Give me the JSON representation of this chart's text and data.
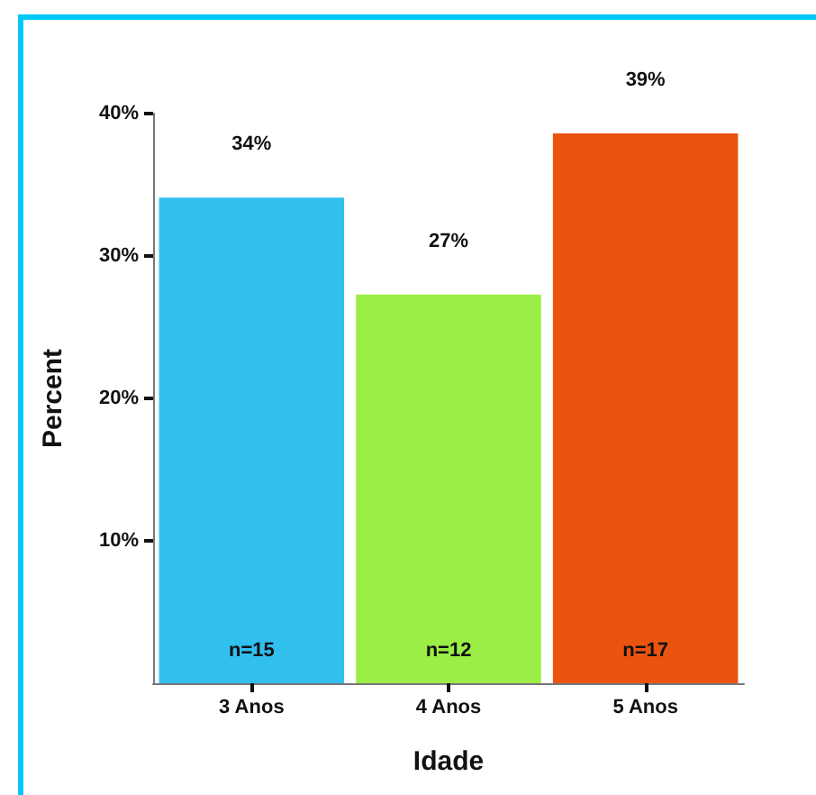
{
  "chart_data": {
    "type": "bar",
    "xlabel": "Idade",
    "ylabel": "Percent",
    "categories": [
      "3 Anos",
      "4 Anos",
      "5 Anos"
    ],
    "values": [
      34.1,
      27.3,
      38.6
    ],
    "colors": [
      "#31bfee",
      "#9aee45",
      "#eb540f"
    ],
    "value_labels": [
      "34%",
      "27%",
      "39%"
    ],
    "ylim": [
      0,
      40
    ],
    "yticks": [
      {
        "value": 10,
        "label": "10%"
      },
      {
        "value": 20,
        "label": "20%"
      },
      {
        "value": 30,
        "label": "30%"
      },
      {
        "value": 40,
        "label": "40%"
      }
    ],
    "grid": false,
    "annotations": [
      "n=15",
      "n=12",
      "n=17"
    ]
  }
}
